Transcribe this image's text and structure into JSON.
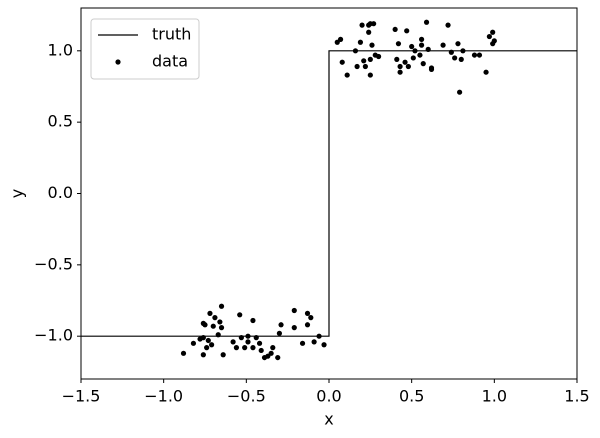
{
  "chart_data": {
    "type": "line",
    "xlabel": "x",
    "ylabel": "y",
    "legend": "upper left",
    "xlim": [
      -1.5,
      1.5
    ],
    "ylim": [
      -1.3,
      1.3
    ],
    "xticks": [
      {
        "value": -1.5,
        "label": "−1.5"
      },
      {
        "value": -1.0,
        "label": "−1.0"
      },
      {
        "value": -0.5,
        "label": "−0.5"
      },
      {
        "value": 0,
        "label": "0.0"
      },
      {
        "value": 0.5,
        "label": "0.5"
      },
      {
        "value": 1.0,
        "label": "1.0"
      },
      {
        "value": 1.5,
        "label": "1.5"
      }
    ],
    "yticks": [
      {
        "value": -1.0,
        "label": "−1.0"
      },
      {
        "value": -0.5,
        "label": "−0.5"
      },
      {
        "value": 0,
        "label": "0.0"
      },
      {
        "value": 0.5,
        "label": "0.5"
      },
      {
        "value": 1.0,
        "label": "1.0"
      }
    ],
    "series": [
      {
        "name": "truth",
        "type": "line",
        "color": "#000000",
        "x": [
          -1.5,
          0,
          0,
          1.5
        ],
        "values": [
          -1,
          -1,
          1,
          1
        ]
      },
      {
        "name": "data",
        "type": "scatter",
        "color": "#000000",
        "x": [
          -0.88,
          -0.82,
          -0.78,
          -0.76,
          -0.75,
          -0.76,
          -0.76,
          -0.74,
          -0.73,
          -0.72,
          -0.71,
          -0.7,
          -0.69,
          -0.67,
          -0.66,
          -0.65,
          -0.65,
          -0.64,
          -0.58,
          -0.56,
          -0.54,
          -0.53,
          -0.51,
          -0.49,
          -0.49,
          -0.46,
          -0.46,
          -0.44,
          -0.42,
          -0.41,
          -0.39,
          -0.37,
          -0.35,
          -0.34,
          -0.31,
          -0.3,
          -0.29,
          -0.21,
          -0.21,
          -0.16,
          -0.13,
          -0.13,
          -0.11,
          -0.09,
          -0.06,
          -0.03,
          0.05,
          0.07,
          0.08,
          0.11,
          0.16,
          0.17,
          0.19,
          0.2,
          0.21,
          0.22,
          0.24,
          0.24,
          0.25,
          0.25,
          0.25,
          0.26,
          0.27,
          0.28,
          0.3,
          0.4,
          0.41,
          0.42,
          0.43,
          0.43,
          0.46,
          0.47,
          0.48,
          0.5,
          0.51,
          0.52,
          0.55,
          0.56,
          0.56,
          0.57,
          0.59,
          0.6,
          0.62,
          0.62,
          0.69,
          0.72,
          0.74,
          0.76,
          0.78,
          0.79,
          0.8,
          0.81,
          0.88,
          0.91,
          0.95,
          0.97,
          0.99,
          0.99,
          1.0
        ],
        "values": [
          -1.12,
          -1.05,
          -1.02,
          -0.91,
          -0.92,
          -1.01,
          -1.13,
          -1.08,
          -1.03,
          -0.84,
          -1.06,
          -0.93,
          -0.87,
          -0.99,
          -0.9,
          -0.79,
          -0.94,
          -1.13,
          -1.04,
          -1.08,
          -0.85,
          -1.01,
          -1.08,
          -1.0,
          -1.04,
          -0.89,
          -1.08,
          -1.01,
          -1.05,
          -1.1,
          -1.15,
          -1.14,
          -1.12,
          -1.08,
          -1.15,
          -0.98,
          -0.92,
          -0.94,
          -0.82,
          -1.05,
          -0.84,
          -0.92,
          -0.87,
          -1.04,
          -1.0,
          -1.06,
          1.06,
          1.08,
          0.92,
          0.83,
          1.0,
          0.89,
          1.06,
          1.18,
          0.93,
          0.89,
          1.18,
          1.13,
          0.94,
          0.83,
          1.19,
          1.04,
          1.19,
          0.97,
          0.96,
          1.15,
          0.94,
          1.05,
          0.89,
          0.85,
          0.92,
          1.14,
          0.89,
          1.03,
          0.95,
          1.0,
          0.97,
          1.08,
          1.04,
          0.91,
          1.2,
          1.01,
          0.88,
          0.87,
          1.04,
          1.18,
          0.99,
          0.95,
          1.05,
          0.71,
          0.94,
          1.0,
          0.97,
          0.97,
          0.85,
          1.1,
          1.13,
          1.05,
          1.07
        ]
      }
    ]
  }
}
